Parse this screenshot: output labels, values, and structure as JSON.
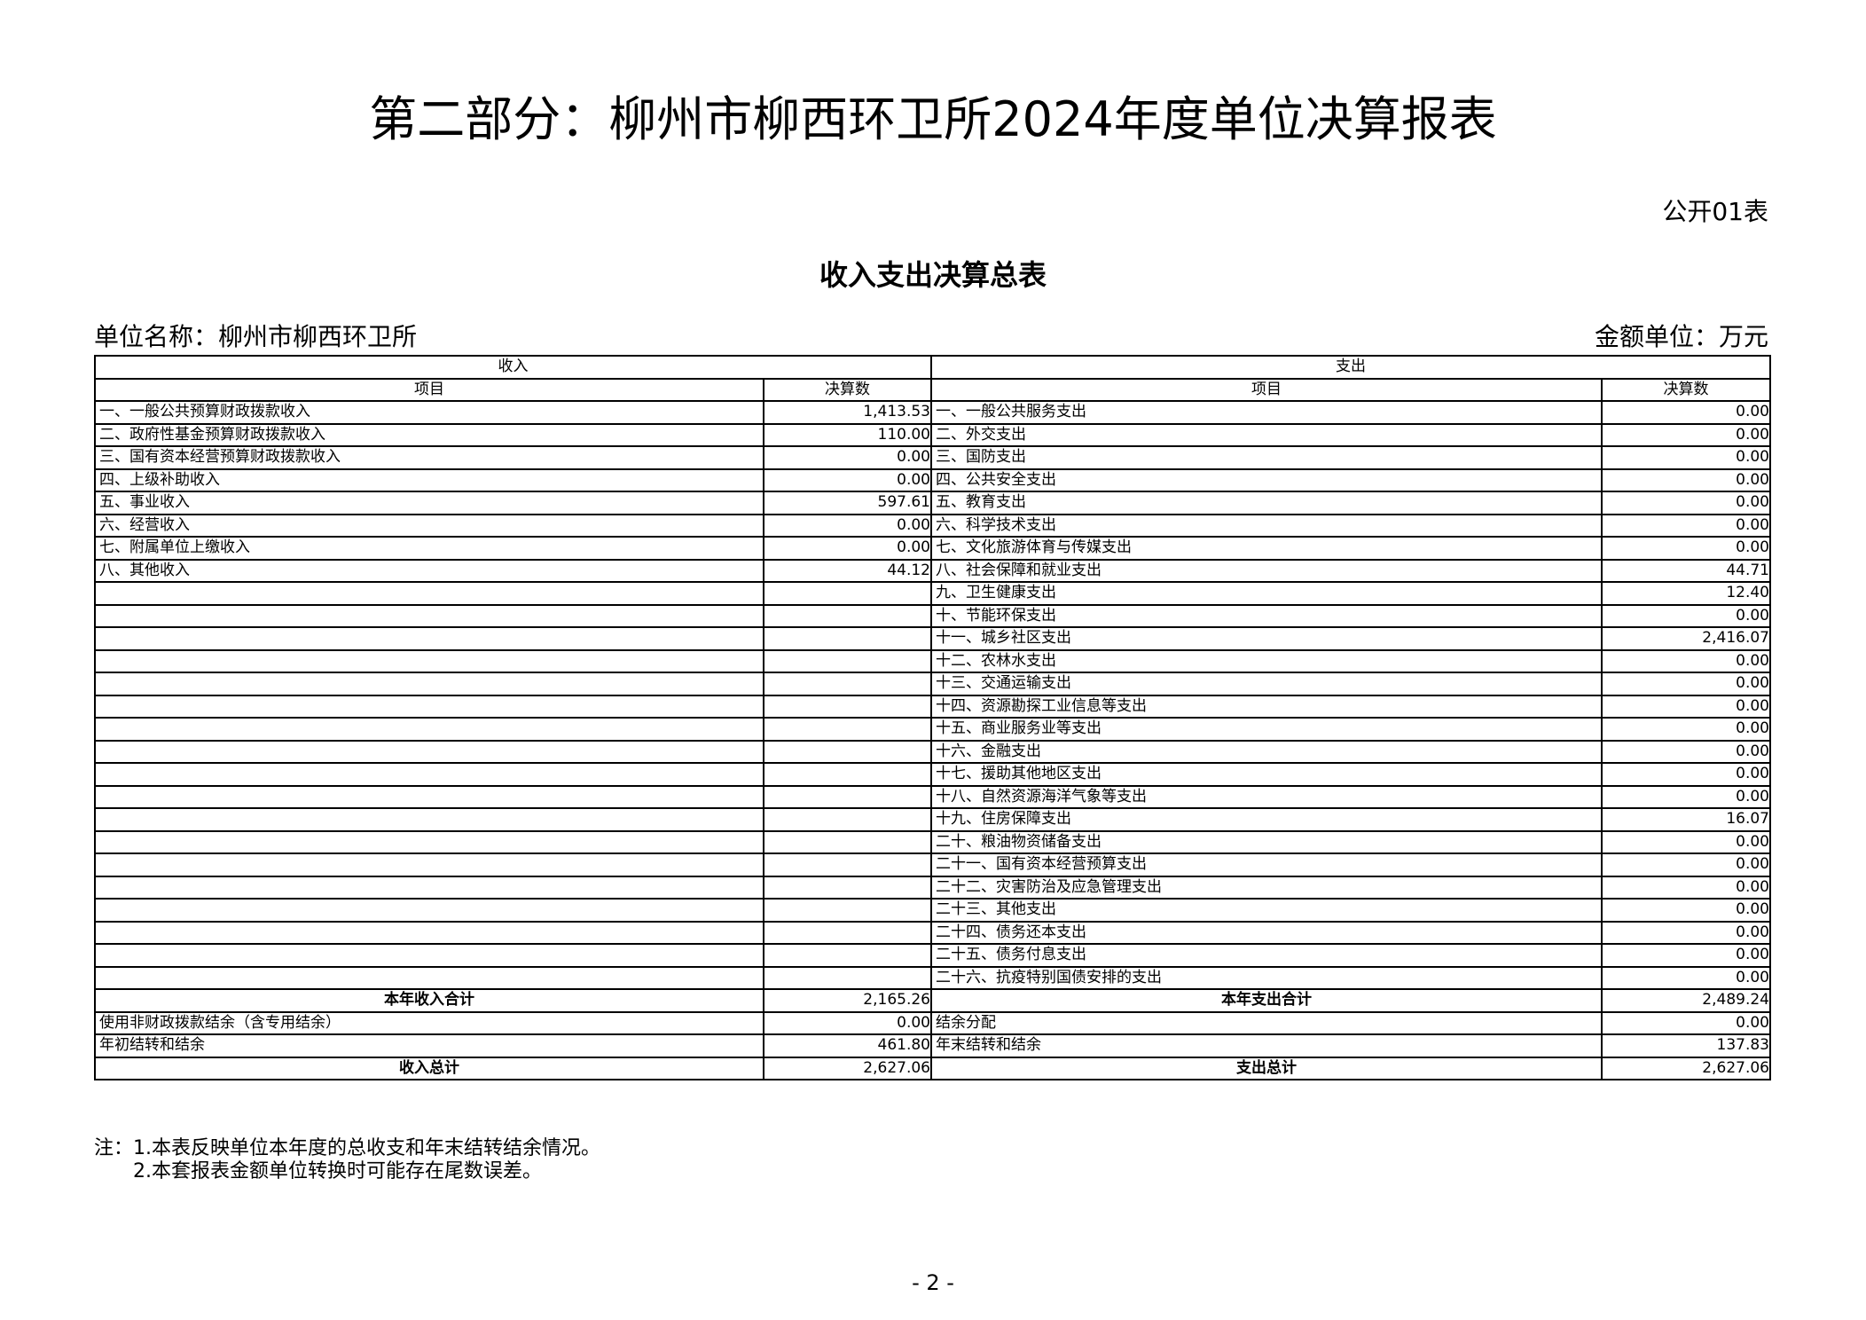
{
  "page_title": "第二部分：柳州市柳西环卫所2024年度单位决算报表",
  "table_code": "公开01表",
  "table_title": "收入支出决算总表",
  "unit_name": "单位名称：柳州市柳西环卫所",
  "money_unit": "金额单位：万元",
  "headers": {
    "income": "收入",
    "expense": "支出",
    "item": "项目",
    "amount": "决算数"
  },
  "income_rows": [
    {
      "item": "一、一般公共预算财政拨款收入",
      "amount": "1,413.53"
    },
    {
      "item": "二、政府性基金预算财政拨款收入",
      "amount": "110.00"
    },
    {
      "item": "三、国有资本经营预算财政拨款收入",
      "amount": "0.00"
    },
    {
      "item": "四、上级补助收入",
      "amount": "0.00"
    },
    {
      "item": "五、事业收入",
      "amount": "597.61"
    },
    {
      "item": "六、经营收入",
      "amount": "0.00"
    },
    {
      "item": "七、附属单位上缴收入",
      "amount": "0.00"
    },
    {
      "item": "八、其他收入",
      "amount": "44.12"
    }
  ],
  "expense_rows": [
    {
      "item": "一、一般公共服务支出",
      "amount": "0.00"
    },
    {
      "item": "二、外交支出",
      "amount": "0.00"
    },
    {
      "item": "三、国防支出",
      "amount": "0.00"
    },
    {
      "item": "四、公共安全支出",
      "amount": "0.00"
    },
    {
      "item": "五、教育支出",
      "amount": "0.00"
    },
    {
      "item": "六、科学技术支出",
      "amount": "0.00"
    },
    {
      "item": "七、文化旅游体育与传媒支出",
      "amount": "0.00"
    },
    {
      "item": "八、社会保障和就业支出",
      "amount": "44.71"
    },
    {
      "item": "九、卫生健康支出",
      "amount": "12.40"
    },
    {
      "item": "十、节能环保支出",
      "amount": "0.00"
    },
    {
      "item": "十一、城乡社区支出",
      "amount": "2,416.07"
    },
    {
      "item": "十二、农林水支出",
      "amount": "0.00"
    },
    {
      "item": "十三、交通运输支出",
      "amount": "0.00"
    },
    {
      "item": "十四、资源勘探工业信息等支出",
      "amount": "0.00"
    },
    {
      "item": "十五、商业服务业等支出",
      "amount": "0.00"
    },
    {
      "item": "十六、金融支出",
      "amount": "0.00"
    },
    {
      "item": "十七、援助其他地区支出",
      "amount": "0.00"
    },
    {
      "item": "十八、自然资源海洋气象等支出",
      "amount": "0.00"
    },
    {
      "item": "十九、住房保障支出",
      "amount": "16.07"
    },
    {
      "item": "二十、粮油物资储备支出",
      "amount": "0.00"
    },
    {
      "item": "二十一、国有资本经营预算支出",
      "amount": "0.00"
    },
    {
      "item": "二十二、灾害防治及应急管理支出",
      "amount": "0.00"
    },
    {
      "item": "二十三、其他支出",
      "amount": "0.00"
    },
    {
      "item": "二十四、债务还本支出",
      "amount": "0.00"
    },
    {
      "item": "二十五、债务付息支出",
      "amount": "0.00"
    },
    {
      "item": "二十六、抗疫特别国债安排的支出",
      "amount": "0.00"
    }
  ],
  "summary_rows": [
    {
      "income_item": "本年收入合计",
      "income_amount": "2,165.26",
      "expense_item": "本年支出合计",
      "expense_amount": "2,489.24",
      "bold": true
    },
    {
      "income_item": "使用非财政拨款结余（含专用结余）",
      "income_amount": "0.00",
      "expense_item": "结余分配",
      "expense_amount": "0.00",
      "bold": false
    },
    {
      "income_item": "年初结转和结余",
      "income_amount": "461.80",
      "expense_item": "年末结转和结余",
      "expense_amount": "137.83",
      "bold": false
    },
    {
      "income_item": "收入总计",
      "income_amount": "2,627.06",
      "expense_item": "支出总计",
      "expense_amount": "2,627.06",
      "bold": true
    }
  ],
  "notes": [
    "注：1.本表反映单位本年度的总收支和年末结转结余情况。",
    "2.本套报表金额单位转换时可能存在尾数误差。"
  ],
  "page_number": "- 2 -"
}
